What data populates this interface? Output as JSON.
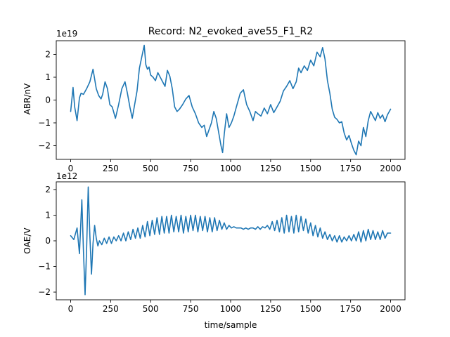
{
  "chart_data": [
    {
      "type": "line",
      "title": "Record: N2_evoked_ave55_F1_R2",
      "xlabel": "",
      "ylabel": "ABR/nV",
      "scale_label": "1e19",
      "xlim": [
        -90,
        2090
      ],
      "ylim": [
        -2.6,
        2.6
      ],
      "xticks": [
        0,
        250,
        500,
        750,
        1000,
        1250,
        1500,
        1750,
        2000
      ],
      "yticks": [
        -2,
        -1,
        0,
        1,
        2
      ],
      "color": "#1f77b4",
      "series": [
        {
          "x": [
            0,
            15,
            25,
            40,
            55,
            65,
            80,
            100,
            120,
            140,
            160,
            175,
            190,
            200,
            215,
            230,
            245,
            260,
            280,
            300,
            320,
            340,
            355,
            370,
            385,
            400,
            415,
            430,
            445,
            460,
            470,
            480,
            490,
            500,
            515,
            530,
            545,
            560,
            575,
            590,
            605,
            620,
            635,
            650,
            665,
            680,
            700,
            720,
            740,
            760,
            780,
            800,
            820,
            835,
            850,
            865,
            880,
            895,
            910,
            925,
            940,
            950,
            960,
            975,
            990,
            1005,
            1020,
            1040,
            1060,
            1080,
            1100,
            1120,
            1140,
            1155,
            1170,
            1190,
            1210,
            1230,
            1250,
            1270,
            1290,
            1310,
            1330,
            1350,
            1370,
            1390,
            1410,
            1425,
            1440,
            1460,
            1480,
            1500,
            1520,
            1540,
            1560,
            1575,
            1590,
            1605,
            1620,
            1635,
            1650,
            1665,
            1680,
            1695,
            1710,
            1725,
            1740,
            1755,
            1770,
            1785,
            1800,
            1815,
            1830,
            1845,
            1860,
            1875,
            1890,
            1905,
            1920,
            1935,
            1950,
            1965,
            1980,
            2000
          ],
          "y": [
            -0.5,
            0.55,
            -0.3,
            -0.9,
            0.1,
            0.3,
            0.25,
            0.5,
            0.8,
            1.35,
            0.5,
            0.2,
            0.05,
            0.25,
            0.8,
            0.5,
            -0.2,
            -0.3,
            -0.8,
            -0.2,
            0.5,
            0.8,
            0.3,
            -0.3,
            -0.8,
            -0.2,
            0.4,
            1.4,
            1.9,
            2.4,
            1.55,
            1.35,
            1.45,
            1.1,
            1.0,
            0.85,
            1.2,
            1.0,
            0.8,
            0.6,
            1.3,
            1.05,
            0.5,
            -0.3,
            -0.5,
            -0.4,
            -0.2,
            0.05,
            0.2,
            -0.3,
            -0.6,
            -1.0,
            -1.2,
            -1.1,
            -1.6,
            -1.3,
            -1.0,
            -0.5,
            -0.8,
            -1.4,
            -2.0,
            -2.3,
            -1.5,
            -0.6,
            -1.2,
            -1.0,
            -0.7,
            -0.2,
            0.3,
            0.45,
            -0.2,
            -0.5,
            -0.9,
            -0.5,
            -0.6,
            -0.7,
            -0.35,
            -0.6,
            -0.2,
            -0.55,
            -0.3,
            -0.05,
            0.4,
            0.6,
            0.85,
            0.5,
            0.8,
            1.4,
            1.2,
            1.5,
            1.3,
            1.75,
            1.5,
            2.1,
            1.9,
            2.3,
            1.8,
            0.85,
            0.3,
            -0.4,
            -0.75,
            -0.85,
            -1.0,
            -0.95,
            -1.45,
            -1.75,
            -1.55,
            -1.9,
            -2.2,
            -2.4,
            -1.8,
            -2.0,
            -1.2,
            -1.6,
            -0.9,
            -0.5,
            -0.7,
            -0.9,
            -0.55,
            -0.8,
            -0.65,
            -0.95,
            -0.65,
            -0.4
          ]
        }
      ]
    },
    {
      "type": "line",
      "title": "",
      "xlabel": "time/sample",
      "ylabel": "OAE/V",
      "scale_label": "1e12",
      "xlim": [
        -90,
        2090
      ],
      "ylim": [
        -2.3,
        2.3
      ],
      "xticks": [
        0,
        250,
        500,
        750,
        1000,
        1250,
        1500,
        1750,
        2000
      ],
      "yticks": [
        -2,
        -1,
        0,
        1,
        2
      ],
      "color": "#1f77b4",
      "series": [
        {
          "x": [
            0,
            20,
            40,
            55,
            70,
            80,
            90,
            100,
            110,
            120,
            130,
            140,
            150,
            160,
            170,
            180,
            195,
            210,
            225,
            240,
            255,
            270,
            285,
            300,
            315,
            330,
            345,
            360,
            375,
            390,
            405,
            420,
            435,
            450,
            465,
            480,
            495,
            510,
            525,
            540,
            555,
            570,
            585,
            600,
            615,
            630,
            645,
            660,
            675,
            690,
            705,
            720,
            735,
            750,
            765,
            780,
            795,
            810,
            825,
            840,
            855,
            870,
            885,
            900,
            915,
            930,
            945,
            960,
            975,
            990,
            1005,
            1020,
            1035,
            1050,
            1065,
            1080,
            1095,
            1110,
            1125,
            1140,
            1155,
            1170,
            1185,
            1200,
            1215,
            1230,
            1245,
            1260,
            1275,
            1290,
            1305,
            1320,
            1335,
            1350,
            1365,
            1380,
            1395,
            1410,
            1425,
            1440,
            1455,
            1470,
            1485,
            1500,
            1515,
            1530,
            1545,
            1560,
            1575,
            1590,
            1605,
            1620,
            1635,
            1650,
            1665,
            1680,
            1695,
            1710,
            1725,
            1740,
            1755,
            1770,
            1785,
            1800,
            1815,
            1830,
            1845,
            1860,
            1875,
            1890,
            1905,
            1920,
            1935,
            1950,
            1965,
            1980,
            2000
          ],
          "y": [
            0.2,
            0.05,
            0.5,
            -0.5,
            1.6,
            -0.4,
            -2.1,
            -0.3,
            2.1,
            0.2,
            -1.3,
            -0.1,
            0.6,
            0.1,
            -0.2,
            0.0,
            -0.15,
            0.1,
            -0.1,
            0.15,
            -0.1,
            0.15,
            0.0,
            0.2,
            0.0,
            0.3,
            0.0,
            0.35,
            0.05,
            0.45,
            0.1,
            0.5,
            0.1,
            0.6,
            0.15,
            0.75,
            0.2,
            0.8,
            0.25,
            0.9,
            0.25,
            0.95,
            0.3,
            0.95,
            0.3,
            1.0,
            0.35,
            0.95,
            0.35,
            1.0,
            0.3,
            0.95,
            0.35,
            1.0,
            0.4,
            1.0,
            0.35,
            0.95,
            0.4,
            0.95,
            0.35,
            0.9,
            0.35,
            0.9,
            0.4,
            0.8,
            0.45,
            0.7,
            0.45,
            0.6,
            0.5,
            0.55,
            0.5,
            0.5,
            0.5,
            0.45,
            0.5,
            0.45,
            0.5,
            0.5,
            0.45,
            0.55,
            0.45,
            0.55,
            0.5,
            0.6,
            0.45,
            0.75,
            0.4,
            0.8,
            0.35,
            0.9,
            0.3,
            1.0,
            0.35,
            0.95,
            0.3,
            1.0,
            0.35,
            0.95,
            0.4,
            0.85,
            0.3,
            0.7,
            0.2,
            0.6,
            0.15,
            0.5,
            0.1,
            0.35,
            0.05,
            0.25,
            0.0,
            0.2,
            -0.05,
            0.2,
            -0.05,
            0.15,
            0.0,
            0.2,
            0.0,
            0.25,
            0.0,
            0.35,
            -0.05,
            0.4,
            0.0,
            0.45,
            0.05,
            0.4,
            0.05,
            0.35,
            0.05,
            0.4,
            0.1,
            0.3,
            0.3
          ]
        }
      ]
    }
  ]
}
